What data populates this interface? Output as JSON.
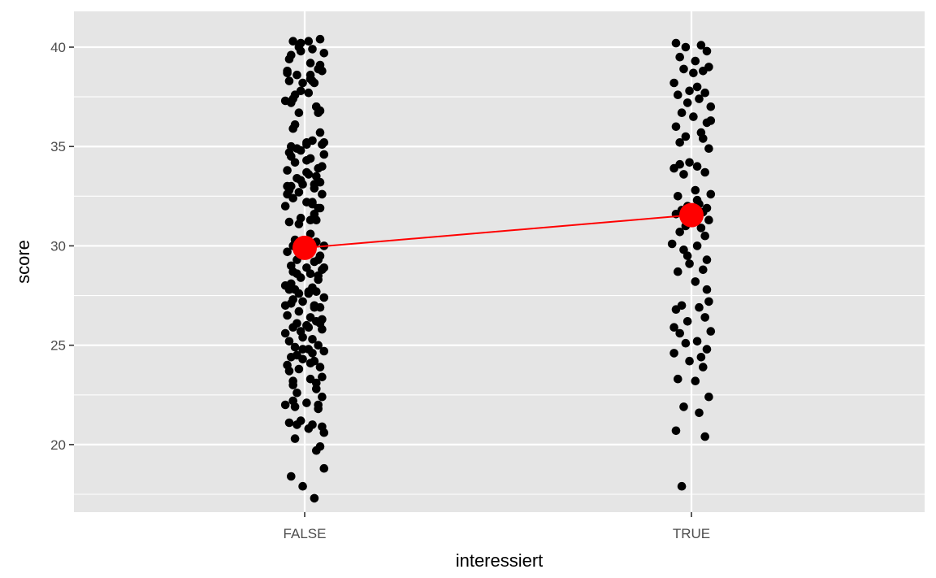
{
  "chart_data": {
    "type": "scatter",
    "title": "",
    "xlabel": "interessiert",
    "ylabel": "score",
    "categories": [
      "FALSE",
      "TRUE"
    ],
    "ylim": [
      16.6,
      41.8
    ],
    "y_ticks": [
      20,
      25,
      30,
      35,
      40
    ],
    "y_minor_ticks": [
      17.5,
      22.5,
      27.5,
      32.5,
      37.5
    ],
    "grid": true,
    "colors": {
      "panel": "#e5e5e5",
      "grid": "#ffffff",
      "points": "#000000",
      "means": "#ff0000"
    },
    "series": [
      {
        "category": "FALSE",
        "jitter": [
          -0.06,
          0.08,
          -0.02,
          0.1,
          -0.07,
          0.04,
          -0.09,
          0.03,
          0.07,
          -0.04,
          0.09,
          -0.01,
          -0.08,
          0.05,
          -0.05,
          0.02,
          -0.1,
          0.06,
          -0.03,
          0.08,
          -0.06,
          0.01,
          0.09,
          -0.07,
          0.04,
          -0.02,
          0.1,
          -0.08,
          0.03,
          -0.05,
          0.07,
          -0.09,
          0.02,
          0.06,
          -0.04,
          0.08,
          -0.01,
          -0.07,
          0.05,
          -0.03,
          0.09,
          -0.06,
          0.01,
          0.04,
          -0.1,
          0.07,
          -0.02,
          0.03,
          -0.08,
          0.06,
          -0.05,
          0.1,
          -0.03,
          0.02,
          -0.09,
          0.08,
          -0.04,
          0.05,
          -0.07,
          0.01,
          0.09,
          -0.06,
          0.03,
          -0.02,
          0.07,
          -0.1,
          0.04,
          -0.05,
          0.06,
          -0.08,
          0.02,
          0.1,
          -0.01,
          -0.07,
          0.05,
          0.08,
          -0.03,
          -0.09,
          0.03,
          0.06,
          -0.04,
          0.01,
          -0.06,
          0.09,
          -0.02,
          0.04,
          -0.08,
          0.07,
          -0.05,
          0.02,
          0.1,
          -0.07,
          -0.01,
          0.05,
          -0.09,
          0.08,
          -0.03,
          0.03,
          0.06,
          -0.06,
          -0.04,
          0.09,
          0.01,
          -0.1,
          0.07,
          -0.02,
          0.04,
          -0.08,
          0.02,
          -0.05,
          0.06,
          0.1,
          -0.07,
          -0.01,
          0.05,
          -0.03,
          0.08,
          -0.09,
          0.03,
          -0.06,
          0.07,
          0.01,
          -0.04,
          0.09,
          -0.02,
          -0.08,
          0.04,
          0.06,
          -0.05,
          0.02,
          0.1,
          -0.07,
          -0.03,
          0.05,
          0.08,
          -0.1,
          -0.01,
          0.03,
          -0.06,
          0.07,
          -0.04,
          0.09,
          0.02,
          -0.08,
          0.04,
          -0.02,
          0.06,
          -0.05,
          0.1,
          -0.07,
          0.01,
          0.05,
          -0.09,
          0.08,
          -0.03,
          0.03,
          -0.06,
          0.07,
          -0.04,
          0.02,
          -0.1,
          0.09,
          -0.01,
          0.04,
          -0.08,
          0.06,
          -0.05,
          0.1,
          -0.02,
          0.03,
          -0.07,
          0.08,
          0.01,
          -0.09,
          0.05,
          -0.03,
          0.07,
          -0.06,
          0.02,
          -0.04,
          0.09
        ],
        "values": [
          40.3,
          40.4,
          40.2,
          39.7,
          39.6,
          39.9,
          38.8,
          39.2,
          38.9,
          38.6,
          38.8,
          38.2,
          38.3,
          38.2,
          37.6,
          37.7,
          37.3,
          37.0,
          36.7,
          36.8,
          35.9,
          35.2,
          35.1,
          35.0,
          35.3,
          34.8,
          34.6,
          34.7,
          34.4,
          34.2,
          33.9,
          33.8,
          33.6,
          33.5,
          33.4,
          33.2,
          33.1,
          33.0,
          32.9,
          32.7,
          32.6,
          32.4,
          32.2,
          32.1,
          32.0,
          31.9,
          31.4,
          31.3,
          31.2,
          30.2,
          30.1,
          30.0,
          29.9,
          29.8,
          29.7,
          29.5,
          29.3,
          29.2,
          29.0,
          28.9,
          28.8,
          28.7,
          28.6,
          28.4,
          28.3,
          28.0,
          27.9,
          27.8,
          27.7,
          27.8,
          27.6,
          27.4,
          27.2,
          27.1,
          27.0,
          26.9,
          26.7,
          26.5,
          26.4,
          26.2,
          26.1,
          26.0,
          25.9,
          25.8,
          25.7,
          25.3,
          25.2,
          25.0,
          24.9,
          24.8,
          24.7,
          24.4,
          24.3,
          24.2,
          24.0,
          23.9,
          23.8,
          23.3,
          23.1,
          23.0,
          22.6,
          22.4,
          22.1,
          22.0,
          21.8,
          21.2,
          21.0,
          21.1,
          20.8,
          20.3,
          19.7,
          18.8,
          18.4,
          17.9,
          17.3,
          40.0,
          39.1,
          38.7,
          38.4,
          37.4,
          36.7,
          35.1,
          34.9,
          34.0,
          33.3,
          32.8,
          32.2,
          31.3,
          30.3,
          29.6,
          28.9,
          28.1,
          27.6,
          26.9,
          26.1,
          25.6,
          24.8,
          24.1,
          23.2,
          22.0,
          21.0,
          20.9,
          40.3,
          39.4,
          38.3,
          37.8,
          37.0,
          36.1,
          35.2,
          34.5,
          33.7,
          33.1,
          32.6,
          31.9,
          31.1,
          30.6,
          30.0,
          29.3,
          28.6,
          27.7,
          27.0,
          26.3,
          25.4,
          24.6,
          23.7,
          22.8,
          21.9,
          20.6,
          39.8,
          38.6,
          37.2,
          35.7,
          34.3,
          33.0,
          31.6,
          29.9,
          28.5,
          27.3,
          25.9,
          24.5,
          23.4,
          22.2,
          19.9
        ],
        "mean": 29.9
      },
      {
        "category": "TRUE",
        "jitter": [
          -0.08,
          0.05,
          -0.03,
          0.08,
          -0.06,
          0.02,
          0.09,
          -0.04,
          0.06,
          -0.09,
          0.03,
          -0.01,
          0.07,
          -0.07,
          0.04,
          -0.02,
          0.1,
          -0.05,
          0.01,
          0.08,
          -0.08,
          0.05,
          -0.03,
          0.06,
          -0.06,
          0.09,
          -0.01,
          0.03,
          -0.09,
          0.07,
          -0.04,
          0.02,
          0.1,
          -0.07,
          0.04,
          -0.02,
          0.08,
          -0.05,
          0.06,
          -0.08,
          0.01,
          0.09,
          -0.03,
          0.05,
          -0.06,
          0.07,
          -0.1,
          0.03,
          -0.04,
          0.08,
          -0.01,
          0.06,
          -0.07,
          0.02,
          0.09,
          -0.05,
          0.04,
          -0.08,
          0.07,
          -0.02,
          0.1,
          -0.06,
          0.03,
          -0.03,
          0.08,
          -0.09,
          0.05,
          -0.01,
          0.06,
          -0.07,
          0.02,
          0.09,
          -0.04,
          0.04,
          -0.08,
          0.07,
          -0.05,
          0.01,
          0.1,
          -0.06,
          0.03,
          -0.02,
          0.08,
          -0.09
        ],
        "values": [
          40.2,
          40.1,
          40.0,
          39.8,
          39.5,
          39.3,
          39.0,
          38.9,
          38.8,
          38.2,
          38.0,
          37.8,
          37.7,
          37.6,
          37.4,
          37.2,
          37.0,
          36.7,
          36.5,
          36.2,
          36.0,
          35.7,
          35.5,
          35.4,
          35.2,
          34.9,
          34.2,
          34.0,
          33.9,
          33.7,
          33.6,
          32.8,
          32.6,
          32.5,
          32.1,
          32.0,
          31.9,
          31.8,
          31.7,
          31.6,
          31.5,
          31.3,
          31.0,
          30.9,
          30.7,
          30.5,
          30.1,
          30.0,
          29.8,
          29.3,
          29.1,
          28.8,
          28.7,
          28.2,
          27.2,
          27.0,
          26.9,
          26.8,
          26.4,
          26.2,
          25.7,
          25.6,
          25.2,
          25.1,
          24.8,
          24.6,
          24.4,
          24.2,
          23.9,
          23.3,
          23.2,
          22.4,
          21.9,
          21.6,
          20.7,
          20.4,
          17.9,
          38.7,
          36.3,
          34.1,
          32.3,
          29.5,
          27.8,
          25.9
        ],
        "mean": 31.55
      }
    ]
  }
}
